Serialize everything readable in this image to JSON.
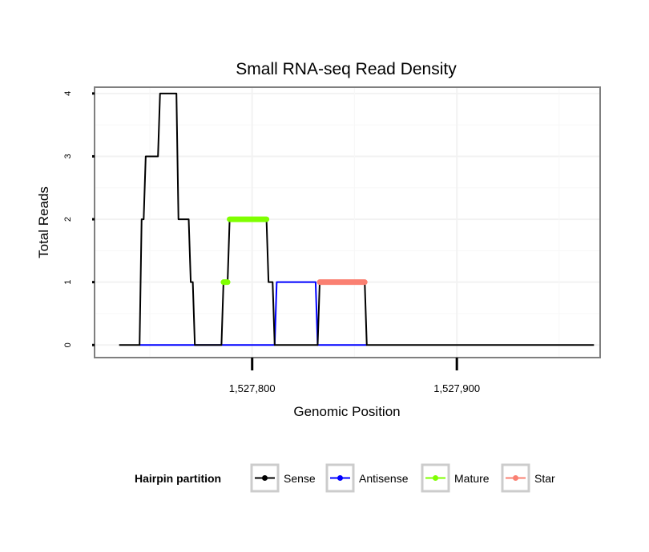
{
  "chart_data": {
    "type": "line",
    "title": "Small RNA-seq Read Density",
    "xlabel": "Genomic Position",
    "ylabel": "Total Reads",
    "xlim": [
      1527723,
      1527970
    ],
    "ylim": [
      -0.2,
      4.1
    ],
    "x_ticks": [
      1527800,
      1527900
    ],
    "x_tick_labels": [
      "1,527,800",
      "1,527,900"
    ],
    "y_ticks": [
      0,
      1,
      2,
      3,
      4
    ],
    "y_tick_labels": [
      "0",
      "1",
      "2",
      "3",
      "4"
    ],
    "grid": true,
    "legend": {
      "title": "Hairpin partition",
      "position": "bottom",
      "entries": [
        "Sense",
        "Antisense",
        "Mature",
        "Star"
      ]
    },
    "series": [
      {
        "name": "Sense",
        "color": "#000000",
        "points": [
          [
            1527735,
            0
          ],
          [
            1527745,
            0
          ],
          [
            1527746,
            2
          ],
          [
            1527747,
            2
          ],
          [
            1527748,
            3
          ],
          [
            1527754,
            3
          ],
          [
            1527755,
            4
          ],
          [
            1527763,
            4
          ],
          [
            1527764,
            2
          ],
          [
            1527769,
            2
          ],
          [
            1527770,
            1
          ],
          [
            1527771,
            1
          ],
          [
            1527772,
            0
          ],
          [
            1527785,
            0
          ],
          [
            1527786,
            1
          ],
          [
            1527788,
            1
          ],
          [
            1527789,
            2
          ],
          [
            1527807,
            2
          ],
          [
            1527808,
            1
          ],
          [
            1527810,
            1
          ],
          [
            1527811,
            0
          ],
          [
            1527832,
            0
          ],
          [
            1527833,
            1
          ],
          [
            1527855,
            1
          ],
          [
            1527856,
            0
          ],
          [
            1527967,
            0
          ]
        ]
      },
      {
        "name": "Antisense",
        "color": "#0000ff",
        "points": [
          [
            1527745,
            0
          ],
          [
            1527811,
            0
          ],
          [
            1527812,
            1
          ],
          [
            1527831,
            1
          ],
          [
            1527832,
            0
          ],
          [
            1527856,
            0
          ]
        ]
      },
      {
        "name": "Mature",
        "color": "#7fff00",
        "points": [
          [
            1527786,
            1
          ],
          [
            1527788,
            1
          ],
          [
            1527789,
            2
          ],
          [
            1527807,
            2
          ]
        ],
        "segments": [
          [
            1527786,
            1527788,
            1
          ],
          [
            1527789,
            1527807,
            2
          ]
        ]
      },
      {
        "name": "Star",
        "color": "#fa8072",
        "points": [
          [
            1527833,
            1
          ],
          [
            1527855,
            1
          ]
        ],
        "segments": [
          [
            1527833,
            1527855,
            1
          ]
        ]
      }
    ]
  }
}
